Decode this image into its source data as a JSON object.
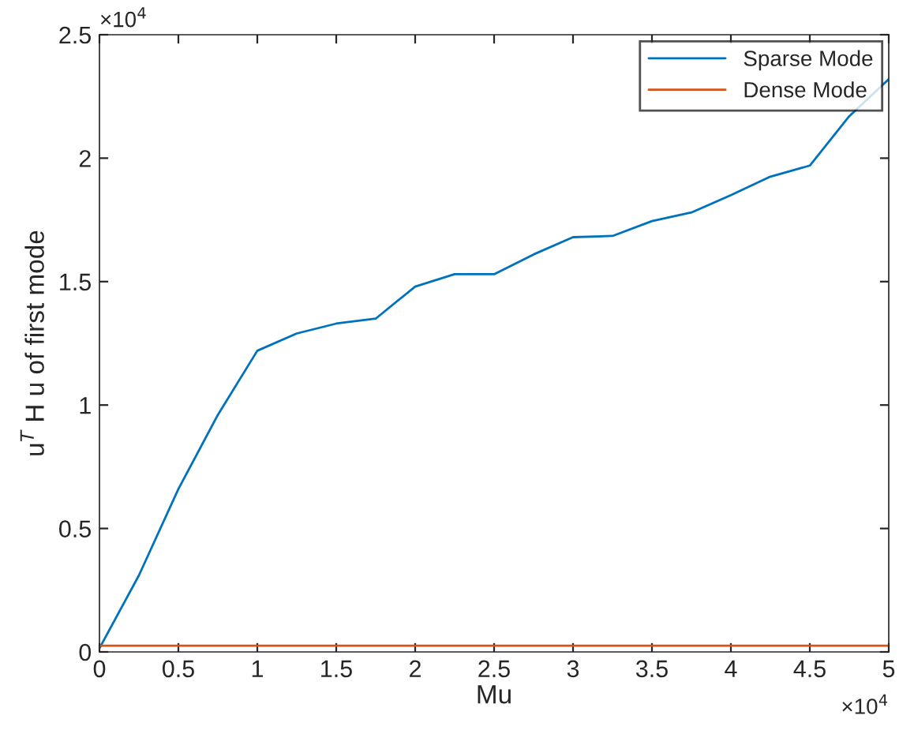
{
  "chart_data": {
    "type": "line",
    "xlabel": "Mu",
    "ylabel": "u$^{T}$ H u of first mode",
    "x": [
      0,
      0.25,
      0.5,
      0.75,
      1,
      1.25,
      1.5,
      1.75,
      2,
      2.25,
      2.5,
      2.75,
      3,
      3.25,
      3.5,
      3.75,
      4,
      4.25,
      4.5,
      4.75,
      5
    ],
    "series": [
      {
        "name": "Sparse Mode",
        "color": "#0072bd",
        "values": [
          0.015,
          0.31,
          0.66,
          0.96,
          1.22,
          1.29,
          1.33,
          1.35,
          1.48,
          1.53,
          1.53,
          1.61,
          1.68,
          1.685,
          1.745,
          1.78,
          1.85,
          1.925,
          1.97,
          2.17,
          2.32
        ]
      },
      {
        "name": "Dense Mode",
        "color": "#d95319",
        "values": [
          0.025,
          0.025,
          0.025,
          0.025,
          0.025,
          0.025,
          0.025,
          0.025,
          0.025,
          0.025,
          0.025,
          0.025,
          0.025,
          0.025,
          0.025,
          0.025,
          0.025,
          0.025,
          0.025,
          0.025,
          0.025
        ]
      }
    ],
    "xlim": [
      0,
      5
    ],
    "ylim": [
      0,
      2.5
    ],
    "xticks": [
      0,
      0.5,
      1,
      1.5,
      2,
      2.5,
      3,
      3.5,
      4,
      4.5,
      5
    ],
    "yticks": [
      0,
      0.5,
      1,
      1.5,
      2,
      2.5
    ],
    "annotations": [
      "×10$^{4}$",
      "×10$^{4}$"
    ],
    "legend": "top right",
    "grid": false,
    "marker": "none",
    "line_style": "solid"
  }
}
